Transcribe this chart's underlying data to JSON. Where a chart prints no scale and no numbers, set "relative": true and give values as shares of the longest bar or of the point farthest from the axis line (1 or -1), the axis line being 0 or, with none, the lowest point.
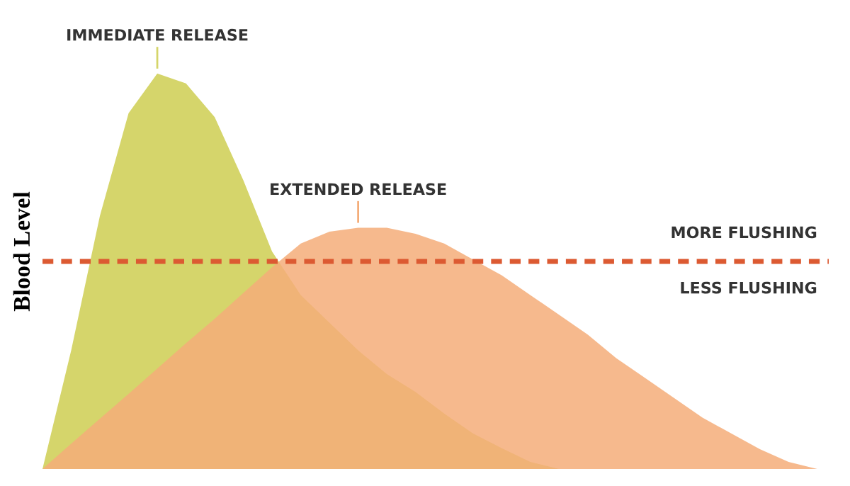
{
  "chart_data": {
    "type": "area",
    "relative": true,
    "ylabel": "Blood Level",
    "categories": [
      null,
      null,
      null,
      null,
      null,
      null,
      null,
      null,
      null,
      null,
      null,
      null,
      null,
      null,
      null,
      null,
      null,
      null,
      null,
      null,
      null,
      null,
      null,
      null,
      null,
      null,
      null,
      null
    ],
    "series": [
      {
        "name": "IMMEDIATE RELEASE",
        "color": "#d5d56b",
        "values": [
          0,
          0.3,
          0.64,
          0.9,
          1,
          0.975,
          0.89,
          0.73,
          0.55,
          0.44,
          0.37,
          0.3,
          0.24,
          0.195,
          0.14,
          0.09,
          0.053,
          0.018,
          0,
          0,
          0,
          0,
          0,
          0,
          0,
          0,
          0,
          0
        ]
      },
      {
        "name": "EXTENDED RELEASE",
        "color": "#f4ad79",
        "values": [
          0,
          0.064,
          0.127,
          0.19,
          0.254,
          0.318,
          0.38,
          0.445,
          0.51,
          0.57,
          0.6,
          0.61,
          0.61,
          0.595,
          0.57,
          0.53,
          0.49,
          0.44,
          0.39,
          0.34,
          0.28,
          0.23,
          0.18,
          0.13,
          0.09,
          0.05,
          0.018,
          0
        ]
      }
    ],
    "ref_lines": [
      {
        "axis": "y",
        "value": 0.525,
        "color": "#dc5a32",
        "line_style": "dashed"
      }
    ],
    "annotations": [
      "MORE FLUSHING",
      "LESS FLUSHING"
    ],
    "legend": false,
    "grid": false
  }
}
